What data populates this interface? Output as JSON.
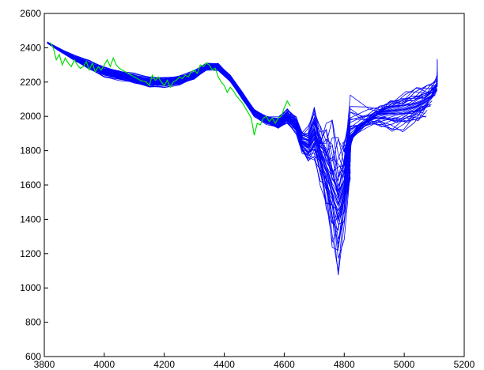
{
  "chart_data": {
    "type": "line",
    "title": "",
    "xlabel": "",
    "ylabel": "",
    "xlim": [
      3800,
      5200
    ],
    "ylim": [
      600,
      2600
    ],
    "xticks": [
      3800,
      4000,
      4200,
      4400,
      4600,
      4800,
      5000,
      5200
    ],
    "yticks": [
      600,
      800,
      1000,
      1200,
      1400,
      1600,
      1800,
      2000,
      2200,
      2400,
      2600
    ],
    "grid": false,
    "legend": "none",
    "colors": {
      "ensemble": "#0000ff",
      "observed": "#00dd00"
    },
    "series": [
      {
        "role": "observed",
        "x": [
          3820,
          3830,
          3840,
          3850,
          3860,
          3870,
          3880,
          3890,
          3900,
          3910,
          3920,
          3930,
          3940,
          3950,
          3960,
          3970,
          3980,
          3990,
          4000,
          4010,
          4020,
          4030,
          4040,
          4050,
          4060,
          4080,
          4100,
          4120,
          4140,
          4150,
          4160,
          4170,
          4180,
          4190,
          4200,
          4210,
          4220,
          4230,
          4240,
          4250,
          4260,
          4270,
          4280,
          4290,
          4300,
          4310,
          4320,
          4330,
          4340,
          4350,
          4360,
          4370,
          4380,
          4390,
          4400,
          4410,
          4420,
          4430,
          4440,
          4450,
          4460,
          4470,
          4480,
          4490,
          4500,
          4510,
          4520,
          4530,
          4540,
          4550,
          4560,
          4570,
          4580,
          4590,
          4600,
          4610,
          4620
        ],
        "y": [
          2430,
          2400,
          2330,
          2360,
          2300,
          2340,
          2310,
          2290,
          2330,
          2300,
          2280,
          2290,
          2320,
          2270,
          2310,
          2260,
          2290,
          2270,
          2300,
          2330,
          2290,
          2340,
          2300,
          2280,
          2270,
          2250,
          2230,
          2210,
          2200,
          2180,
          2240,
          2210,
          2230,
          2200,
          2180,
          2210,
          2170,
          2200,
          2210,
          2230,
          2220,
          2240,
          2230,
          2260,
          2270,
          2250,
          2300,
          2290,
          2310,
          2300,
          2270,
          2280,
          2230,
          2200,
          2180,
          2140,
          2170,
          2150,
          2120,
          2100,
          2080,
          2050,
          2020,
          1990,
          1890,
          1960,
          1950,
          1990,
          2000,
          1970,
          1990,
          1960,
          1990,
          2000,
          2050,
          2090,
          2060
        ]
      }
    ],
    "ensemble": {
      "description_x": [
        3810,
        3850,
        3900,
        3950,
        4000,
        4050,
        4100,
        4150,
        4200,
        4250,
        4300,
        4340,
        4380,
        4420,
        4460,
        4500,
        4540,
        4580,
        4610,
        4640,
        4660,
        4680,
        4700,
        4720,
        4740,
        4760,
        4780,
        4800,
        4820,
        4840,
        4880,
        4920,
        4960,
        5000,
        5040,
        5080,
        5110
      ],
      "mean_y": [
        2430,
        2390,
        2340,
        2300,
        2260,
        2240,
        2220,
        2200,
        2200,
        2210,
        2240,
        2290,
        2290,
        2220,
        2120,
        2020,
        1980,
        1960,
        2000,
        1950,
        1850,
        1830,
        1900,
        1880,
        1850,
        1780,
        1700,
        1750,
        1850,
        1920,
        1980,
        2020,
        2030,
        2040,
        2060,
        2100,
        2150
      ],
      "spread": [
        5,
        10,
        20,
        30,
        35,
        35,
        35,
        35,
        35,
        35,
        30,
        25,
        25,
        25,
        25,
        25,
        30,
        40,
        50,
        60,
        80,
        120,
        180,
        300,
        500,
        650,
        700,
        500,
        300,
        150,
        100,
        100,
        120,
        150,
        160,
        180,
        200
      ],
      "members": 40
    }
  }
}
